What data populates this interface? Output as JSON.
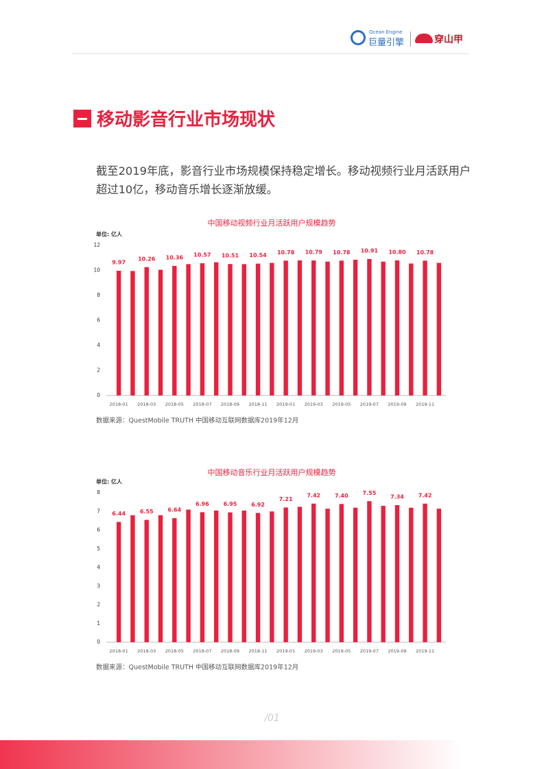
{
  "header": {
    "brand_en": "Ocean Engine",
    "brand_cn": "巨量引擎",
    "partner": "穿山甲"
  },
  "section_title": "移动影音行业市场现状",
  "intro": "截至2019年底，影音行业市场规模保持稳定增长。移动视频行业月活跃用户超过10亿，移动音乐增长逐渐放缓。",
  "page_number": "/01",
  "chart_data": [
    {
      "type": "bar",
      "title": "中国移动视频行业月活跃用户规模趋势",
      "unit": "单位: 亿人",
      "source": "数据来源：QuestMobile TRUTH 中国移动互联网数据库2019年12月",
      "color": "#e8213f",
      "grid": false,
      "categories": [
        "2018-01",
        null,
        "2018-03",
        null,
        "2018-05",
        null,
        "2018-07",
        null,
        "2018-09",
        null,
        "2018-11",
        null,
        "2019-01",
        null,
        "2019-03",
        null,
        "2019-05",
        null,
        "2019-07",
        null,
        "2019-09",
        null,
        "2019-11",
        null
      ],
      "values": [
        9.97,
        9.95,
        10.26,
        10.05,
        10.36,
        10.5,
        10.57,
        10.65,
        10.51,
        10.5,
        10.54,
        10.6,
        10.78,
        10.8,
        10.79,
        10.7,
        10.78,
        10.85,
        10.91,
        10.7,
        10.8,
        10.55,
        10.78,
        10.6
      ],
      "value_labels": [
        "9.97",
        null,
        "10.26",
        null,
        "10.36",
        null,
        "10.57",
        null,
        "10.51",
        null,
        "10.54",
        null,
        "10.78",
        null,
        "10.79",
        null,
        "10.78",
        null,
        "10.91",
        null,
        "10.80",
        null,
        "10.78",
        null
      ],
      "ylim": [
        0,
        12
      ],
      "yticks": [
        0,
        2,
        4,
        6,
        8,
        10,
        12
      ]
    },
    {
      "type": "bar",
      "title": "中国移动音乐行业月活跃用户规模趋势",
      "unit": "单位: 亿人",
      "source": "数据来源：QuestMobile TRUTH 中国移动互联网数据库2019年12月",
      "color": "#e8213f",
      "grid": false,
      "categories": [
        "2018-01",
        null,
        "2018-03",
        null,
        "2018-05",
        null,
        "2018-07",
        null,
        "2018-09",
        null,
        "2018-11",
        null,
        "2019-01",
        null,
        "2019-03",
        null,
        "2019-05",
        null,
        "2019-07",
        null,
        "2019-09",
        null,
        "2019-11",
        null
      ],
      "values": [
        6.44,
        6.8,
        6.55,
        6.8,
        6.64,
        7.1,
        6.96,
        7.05,
        6.95,
        7.05,
        6.92,
        7.0,
        7.21,
        7.25,
        7.42,
        7.15,
        7.4,
        7.2,
        7.55,
        7.3,
        7.34,
        7.2,
        7.42,
        7.15
      ],
      "value_labels": [
        "6.44",
        null,
        "6.55",
        null,
        "6.64",
        null,
        "6.96",
        null,
        "6.95",
        null,
        "6.92",
        null,
        "7.21",
        null,
        "7.42",
        null,
        "7.40",
        null,
        "7.55",
        null,
        "7.34",
        null,
        "7.42",
        null
      ],
      "ylim": [
        0,
        8
      ],
      "yticks": [
        0,
        1,
        2,
        3,
        4,
        5,
        6,
        7,
        8
      ]
    }
  ]
}
